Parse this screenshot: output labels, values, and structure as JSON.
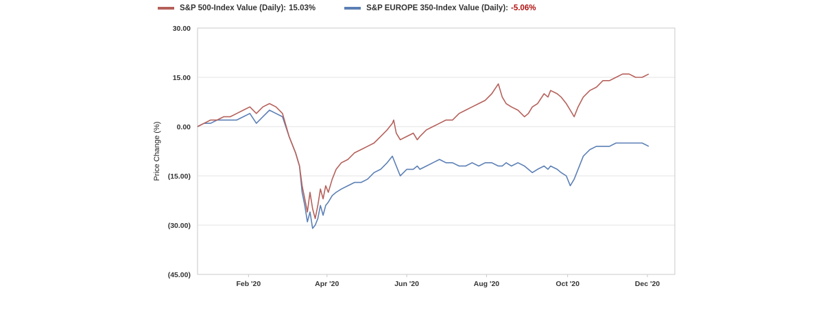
{
  "colors": {
    "sp500": "#b5605a",
    "europe350": "#5b7fb5",
    "negative_value": "#b01010",
    "grid": "#e3e3e3",
    "frame": "#c9c9c9"
  },
  "legend": {
    "sp500_label": "S&P 500-Index Value (Daily):",
    "sp500_value": "15.03%",
    "europe_label": "S&P EUROPE 350-Index Value (Daily):",
    "europe_value": "-5.06%"
  },
  "chart_data": {
    "type": "line",
    "title": "",
    "xlabel": "",
    "ylabel": "Price Change (%)",
    "ylim": [
      -45,
      30
    ],
    "yticks": [
      30,
      15,
      0,
      -15,
      -30,
      -45
    ],
    "ytick_labels": [
      "30.00",
      "15.00",
      "0.00",
      "(15.00)",
      "(30.00)",
      "(45.00)"
    ],
    "xlim_days": [
      0,
      365
    ],
    "xticks": [
      {
        "label": "Feb '20",
        "day": 39
      },
      {
        "label": "Apr '20",
        "day": 99
      },
      {
        "label": "Jun '20",
        "day": 160
      },
      {
        "label": "Aug '20",
        "day": 221
      },
      {
        "label": "Oct '20",
        "day": 283
      },
      {
        "label": "Dec '20",
        "day": 344
      }
    ],
    "grid": true,
    "legend_position": "top",
    "series": [
      {
        "name": "S&P 500-Index Value (Daily)",
        "final_value": 15.03,
        "points": [
          [
            0,
            0
          ],
          [
            5,
            1
          ],
          [
            10,
            2
          ],
          [
            15,
            2
          ],
          [
            20,
            3
          ],
          [
            25,
            3
          ],
          [
            30,
            4
          ],
          [
            35,
            5
          ],
          [
            40,
            6
          ],
          [
            45,
            4
          ],
          [
            50,
            6
          ],
          [
            55,
            7
          ],
          [
            60,
            6
          ],
          [
            65,
            4
          ],
          [
            70,
            -3
          ],
          [
            75,
            -8
          ],
          [
            78,
            -12
          ],
          [
            80,
            -18
          ],
          [
            82,
            -22
          ],
          [
            84,
            -26
          ],
          [
            86,
            -20
          ],
          [
            88,
            -25
          ],
          [
            90,
            -28
          ],
          [
            92,
            -24
          ],
          [
            94,
            -19
          ],
          [
            96,
            -22
          ],
          [
            98,
            -18
          ],
          [
            100,
            -20
          ],
          [
            103,
            -16
          ],
          [
            106,
            -13
          ],
          [
            110,
            -11
          ],
          [
            115,
            -10
          ],
          [
            120,
            -8
          ],
          [
            125,
            -7
          ],
          [
            130,
            -6
          ],
          [
            135,
            -5
          ],
          [
            140,
            -3
          ],
          [
            145,
            -1
          ],
          [
            149,
            1
          ],
          [
            150,
            2
          ],
          [
            152,
            -2
          ],
          [
            155,
            -4
          ],
          [
            160,
            -3
          ],
          [
            165,
            -2
          ],
          [
            168,
            -4
          ],
          [
            170,
            -3
          ],
          [
            175,
            -1
          ],
          [
            180,
            0
          ],
          [
            185,
            1
          ],
          [
            190,
            2
          ],
          [
            195,
            2
          ],
          [
            200,
            4
          ],
          [
            205,
            5
          ],
          [
            210,
            6
          ],
          [
            215,
            7
          ],
          [
            220,
            8
          ],
          [
            225,
            10
          ],
          [
            230,
            13
          ],
          [
            233,
            9
          ],
          [
            236,
            7
          ],
          [
            240,
            6
          ],
          [
            245,
            5
          ],
          [
            250,
            3
          ],
          [
            253,
            4
          ],
          [
            256,
            6
          ],
          [
            260,
            7
          ],
          [
            265,
            10
          ],
          [
            268,
            9
          ],
          [
            270,
            11
          ],
          [
            275,
            10
          ],
          [
            278,
            9
          ],
          [
            282,
            7
          ],
          [
            285,
            5
          ],
          [
            288,
            3
          ],
          [
            291,
            6
          ],
          [
            295,
            9
          ],
          [
            300,
            11
          ],
          [
            305,
            12
          ],
          [
            310,
            14
          ],
          [
            315,
            14
          ],
          [
            320,
            15
          ],
          [
            325,
            16
          ],
          [
            330,
            16
          ],
          [
            335,
            15
          ],
          [
            340,
            15
          ],
          [
            345,
            16
          ]
        ]
      },
      {
        "name": "S&P EUROPE 350-Index Value (Daily)",
        "final_value": -5.06,
        "points": [
          [
            0,
            0
          ],
          [
            5,
            1
          ],
          [
            10,
            1
          ],
          [
            15,
            2
          ],
          [
            20,
            2
          ],
          [
            25,
            2
          ],
          [
            30,
            2
          ],
          [
            35,
            3
          ],
          [
            40,
            4
          ],
          [
            45,
            1
          ],
          [
            50,
            3
          ],
          [
            55,
            5
          ],
          [
            60,
            4
          ],
          [
            65,
            3
          ],
          [
            70,
            -3
          ],
          [
            75,
            -8
          ],
          [
            78,
            -12
          ],
          [
            80,
            -20
          ],
          [
            82,
            -24
          ],
          [
            84,
            -29
          ],
          [
            86,
            -26
          ],
          [
            88,
            -31
          ],
          [
            90,
            -30
          ],
          [
            92,
            -28
          ],
          [
            94,
            -24
          ],
          [
            96,
            -27
          ],
          [
            98,
            -24
          ],
          [
            100,
            -23
          ],
          [
            103,
            -21
          ],
          [
            106,
            -20
          ],
          [
            110,
            -19
          ],
          [
            115,
            -18
          ],
          [
            120,
            -17
          ],
          [
            125,
            -17
          ],
          [
            130,
            -16
          ],
          [
            135,
            -14
          ],
          [
            140,
            -13
          ],
          [
            145,
            -11
          ],
          [
            149,
            -9
          ],
          [
            150,
            -10
          ],
          [
            152,
            -12
          ],
          [
            155,
            -15
          ],
          [
            160,
            -13
          ],
          [
            165,
            -13
          ],
          [
            168,
            -12
          ],
          [
            170,
            -13
          ],
          [
            175,
            -12
          ],
          [
            180,
            -11
          ],
          [
            185,
            -10
          ],
          [
            190,
            -11
          ],
          [
            195,
            -11
          ],
          [
            200,
            -12
          ],
          [
            205,
            -12
          ],
          [
            210,
            -11
          ],
          [
            215,
            -12
          ],
          [
            220,
            -11
          ],
          [
            225,
            -11
          ],
          [
            230,
            -12
          ],
          [
            233,
            -12
          ],
          [
            236,
            -11
          ],
          [
            240,
            -12
          ],
          [
            245,
            -11
          ],
          [
            250,
            -12
          ],
          [
            253,
            -13
          ],
          [
            256,
            -14
          ],
          [
            260,
            -13
          ],
          [
            265,
            -12
          ],
          [
            268,
            -13
          ],
          [
            270,
            -12
          ],
          [
            275,
            -13
          ],
          [
            278,
            -14
          ],
          [
            282,
            -15
          ],
          [
            285,
            -18
          ],
          [
            288,
            -16
          ],
          [
            291,
            -13
          ],
          [
            295,
            -9
          ],
          [
            300,
            -7
          ],
          [
            305,
            -6
          ],
          [
            310,
            -6
          ],
          [
            315,
            -6
          ],
          [
            320,
            -5
          ],
          [
            325,
            -5
          ],
          [
            330,
            -5
          ],
          [
            335,
            -5
          ],
          [
            340,
            -5
          ],
          [
            345,
            -6
          ]
        ]
      }
    ]
  }
}
